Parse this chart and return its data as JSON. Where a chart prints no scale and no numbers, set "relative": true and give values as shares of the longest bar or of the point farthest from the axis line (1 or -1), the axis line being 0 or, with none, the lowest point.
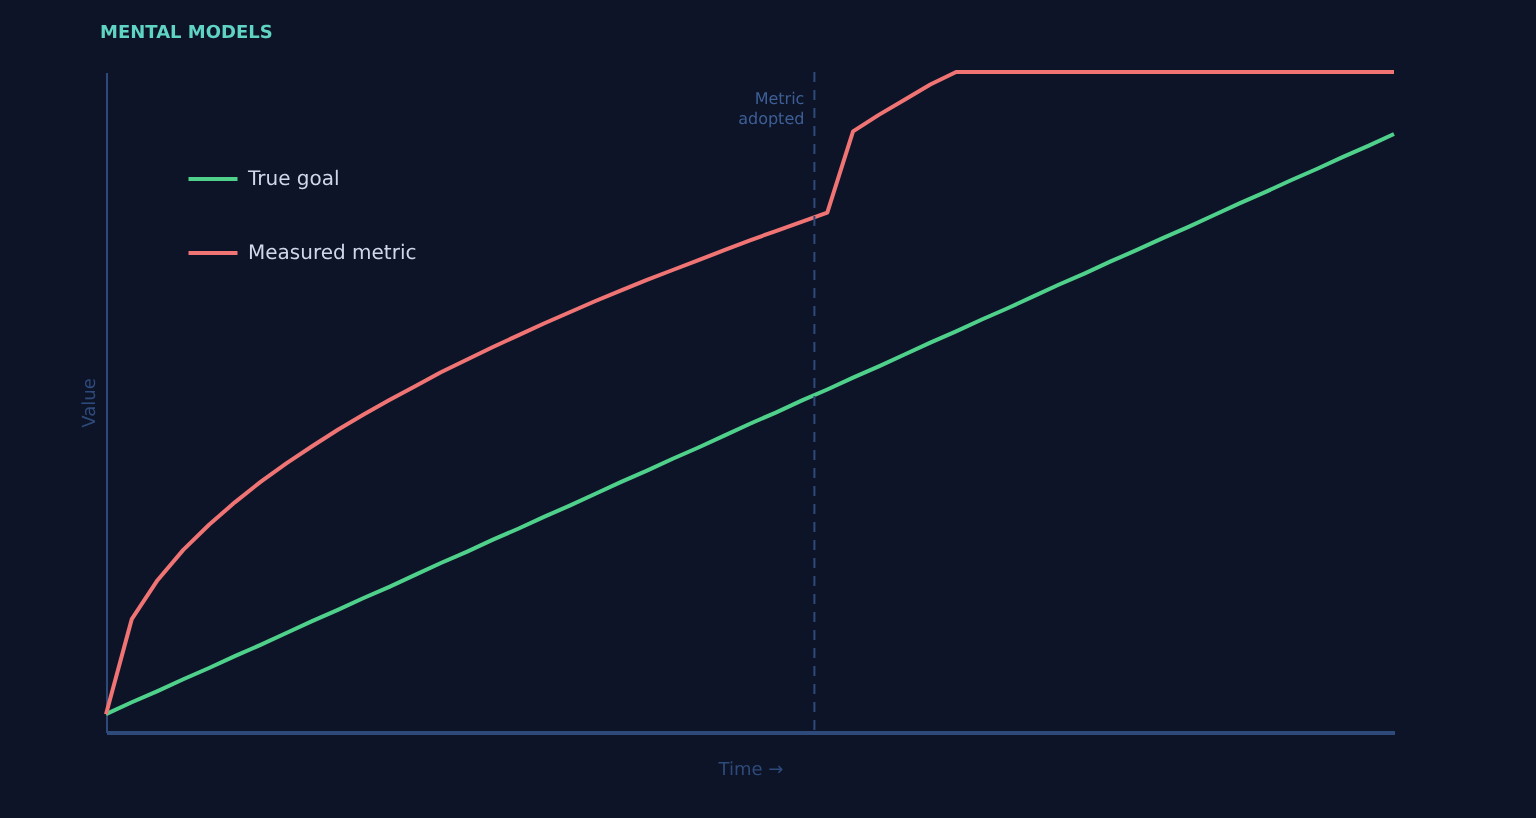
{
  "chart_data": {
    "type": "line",
    "title": "MENTAL MODELS",
    "xlabel": "Time →",
    "ylabel": "Value",
    "relative": true,
    "annotations": [
      "Metric adopted"
    ],
    "legend": "top left",
    "grid": false,
    "marker": "none",
    "line_style": "solid",
    "categories": [
      null,
      null,
      null,
      null,
      null,
      null,
      null,
      null,
      null,
      null,
      null,
      null,
      null,
      null,
      null,
      null,
      null,
      null,
      null,
      null,
      null,
      null,
      null,
      null,
      null,
      null,
      null,
      null,
      null,
      null,
      null,
      null,
      null,
      null,
      null,
      null,
      null,
      null,
      null,
      null,
      null,
      null,
      null,
      null,
      null,
      null,
      null,
      null,
      null,
      null,
      null
    ],
    "series": [
      {
        "name": "True goal",
        "color": "#4fd18b",
        "values": [
          0.027,
          0.045,
          0.062,
          0.08,
          0.097,
          0.115,
          0.132,
          0.15,
          0.168,
          0.185,
          0.203,
          0.22,
          0.238,
          0.256,
          0.273,
          0.291,
          0.308,
          0.326,
          0.343,
          0.361,
          0.379,
          0.396,
          0.414,
          0.431,
          0.449,
          0.467,
          0.484,
          0.502,
          0.519,
          0.537,
          0.554,
          0.572,
          0.59,
          0.607,
          0.625,
          0.642,
          0.66,
          0.678,
          0.695,
          0.713,
          0.73,
          0.748,
          0.765,
          0.783,
          0.801,
          0.818,
          0.836,
          0.853,
          0.871,
          0.888,
          0.906
        ]
      },
      {
        "name": "Measured metric",
        "color": "#f07474",
        "values": [
          0.027,
          0.171,
          0.23,
          0.276,
          0.314,
          0.348,
          0.379,
          0.407,
          0.433,
          0.458,
          0.481,
          0.503,
          0.524,
          0.545,
          0.564,
          0.583,
          0.601,
          0.619,
          0.636,
          0.653,
          0.669,
          0.685,
          0.7,
          0.715,
          0.73,
          0.745,
          0.759,
          0.773,
          0.787,
          0.91,
          0.935,
          0.958,
          0.981,
          1.0,
          1.0,
          1.0,
          1.0,
          1.0,
          1.0,
          1.0,
          1.0,
          1.0,
          1.0,
          1.0,
          1.0,
          1.0,
          1.0,
          1.0,
          1.0,
          1.0,
          1.0
        ]
      }
    ]
  }
}
